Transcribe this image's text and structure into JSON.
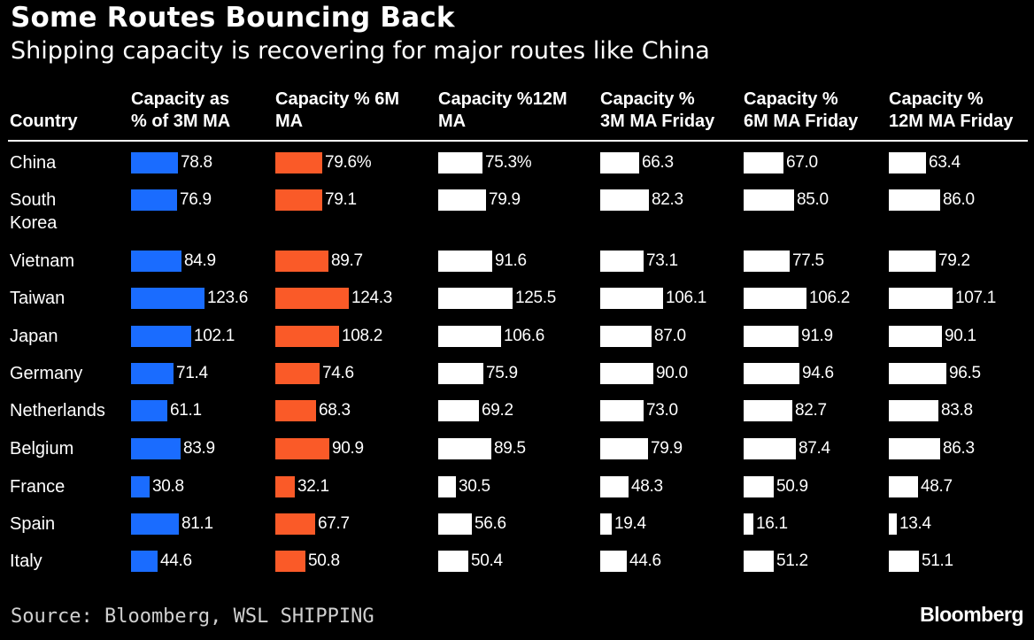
{
  "title": "Some Routes Bouncing Back",
  "subtitle": "Shipping capacity is recovering for major routes like China",
  "source": "Source: Bloomberg, WSL SHIPPING",
  "brand": "Bloomberg",
  "colors": {
    "background": "#000000",
    "blue": "#1a6cff",
    "orange": "#fa5a28",
    "white": "#ffffff"
  },
  "chart_data": {
    "type": "table",
    "title": "Some Routes Bouncing Back",
    "subtitle": "Shipping capacity is recovering for major routes like China",
    "row_header": "Country",
    "columns": [
      {
        "name": "Capacity as % of 3M MA",
        "lines": [
          "Capacity as",
          "% of 3M MA"
        ],
        "color": "#1a6cff",
        "suffix": ""
      },
      {
        "name": "Capacity % 6M MA",
        "lines": [
          "Capacity % 6M",
          "MA"
        ],
        "color": "#fa5a28",
        "suffix": "%"
      },
      {
        "name": "Capacity %12M MA",
        "lines": [
          "Capacity %12M",
          "MA"
        ],
        "color": "#ffffff",
        "suffix": ""
      },
      {
        "name": "Capacity % 3M MA Friday",
        "lines": [
          "Capacity %",
          "3M MA Friday"
        ],
        "color": "#ffffff",
        "suffix": ""
      },
      {
        "name": "Capacity % 6M MA Friday",
        "lines": [
          "Capacity %",
          "6M MA Friday"
        ],
        "color": "#ffffff",
        "suffix": ""
      },
      {
        "name": "Capacity % 12M MA Friday",
        "lines": [
          "Capacity %",
          "12M MA Friday"
        ],
        "color": "#ffffff",
        "suffix": ""
      }
    ],
    "rows": [
      {
        "country": [
          "China"
        ],
        "values": [
          78.8,
          79.6,
          75.3,
          66.3,
          67.0,
          63.4
        ],
        "labels": [
          "78.8",
          "79.6%",
          "75.3%",
          "66.3",
          "67.0",
          "63.4"
        ]
      },
      {
        "country": [
          "South",
          "Korea"
        ],
        "values": [
          76.9,
          79.1,
          79.9,
          82.3,
          85.0,
          86.0
        ],
        "labels": [
          "76.9",
          "79.1",
          "79.9",
          "82.3",
          "85.0",
          "86.0"
        ]
      },
      {
        "country": [
          "Vietnam"
        ],
        "values": [
          84.9,
          89.7,
          91.6,
          73.1,
          77.5,
          79.2
        ],
        "labels": [
          "84.9",
          "89.7",
          "91.6",
          "73.1",
          "77.5",
          "79.2"
        ]
      },
      {
        "country": [
          "Taiwan"
        ],
        "values": [
          123.6,
          124.3,
          125.5,
          106.1,
          106.2,
          107.1
        ],
        "labels": [
          "123.6",
          "124.3",
          "125.5",
          "106.1",
          "106.2",
          "107.1"
        ]
      },
      {
        "country": [
          "Japan"
        ],
        "values": [
          102.1,
          108.2,
          106.6,
          87.0,
          91.9,
          90.1
        ],
        "labels": [
          "102.1",
          "108.2",
          "106.6",
          "87.0",
          "91.9",
          "90.1"
        ]
      },
      {
        "country": [
          "Germany"
        ],
        "values": [
          71.4,
          74.6,
          75.9,
          90.0,
          94.6,
          96.5
        ],
        "labels": [
          "71.4",
          "74.6",
          "75.9",
          "90.0",
          "94.6",
          "96.5"
        ]
      },
      {
        "country": [
          "Netherlands"
        ],
        "values": [
          61.1,
          68.3,
          69.2,
          73.0,
          82.7,
          83.8
        ],
        "labels": [
          "61.1",
          "68.3",
          "69.2",
          "73.0",
          "82.7",
          "83.8"
        ]
      },
      {
        "country": [
          "Belgium"
        ],
        "values": [
          83.9,
          90.9,
          89.5,
          79.9,
          87.4,
          86.3
        ],
        "labels": [
          "83.9",
          "90.9",
          "89.5",
          "79.9",
          "87.4",
          "86.3"
        ]
      },
      {
        "country": [
          "France"
        ],
        "values": [
          30.8,
          32.1,
          30.5,
          48.3,
          50.9,
          48.7
        ],
        "labels": [
          "30.8",
          "32.1",
          "30.5",
          "48.3",
          "50.9",
          "48.7"
        ]
      },
      {
        "country": [
          "Spain"
        ],
        "values": [
          81.1,
          67.7,
          56.6,
          19.4,
          16.1,
          13.4
        ],
        "labels": [
          "81.1",
          "67.7",
          "56.6",
          "19.4",
          "16.1",
          "13.4"
        ]
      },
      {
        "country": [
          "Italy"
        ],
        "values": [
          44.6,
          50.8,
          50.4,
          44.6,
          51.2,
          51.1
        ],
        "labels": [
          "44.6",
          "50.8",
          "50.4",
          "44.6",
          "51.2",
          "51.1"
        ]
      }
    ]
  }
}
